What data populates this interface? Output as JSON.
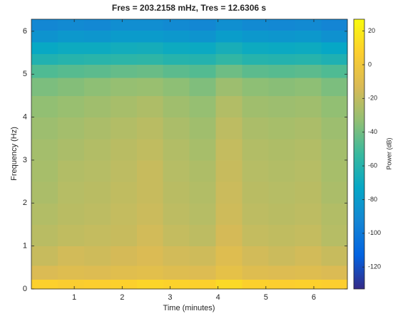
{
  "chart_data": {
    "type": "heatmap",
    "title": "Fres = 203.2158 mHz, Tres = 12.6306 s",
    "x_label": "Time (minutes)",
    "y_label": "Frequency (Hz)",
    "colorbar_label": "Power (dB)",
    "xlim": [
      0.105,
      6.7
    ],
    "ylim": [
      0,
      6.28
    ],
    "xticks": [
      1,
      2,
      3,
      4,
      5,
      6
    ],
    "yticks": [
      0,
      1,
      2,
      3,
      4,
      5,
      6
    ],
    "clim": [
      -133,
      27
    ],
    "cticks": [
      20,
      0,
      -20,
      -40,
      -60,
      -80,
      -100,
      -120
    ],
    "colormap": [
      "#352a87",
      "#0363e1",
      "#1485d4",
      "#06a7c6",
      "#38b99e",
      "#92bf73",
      "#d9ba56",
      "#fcce2e",
      "#f9fb0e"
    ],
    "x": [
      0.38,
      0.93,
      1.48,
      2.03,
      2.58,
      3.13,
      3.68,
      4.23,
      4.78,
      5.33,
      5.88,
      6.43
    ],
    "y": [
      0.1,
      0.35,
      0.75,
      1.25,
      1.75,
      2.25,
      2.75,
      3.25,
      3.75,
      4.25,
      4.75,
      5.1,
      5.35,
      5.6,
      5.9,
      6.15
    ],
    "z": [
      [
        8,
        6,
        7,
        8,
        10,
        9,
        8,
        12,
        8,
        7,
        8,
        7
      ],
      [
        -12,
        -10,
        -11,
        -9,
        -8,
        -10,
        -11,
        -6,
        -10,
        -11,
        -10,
        -12
      ],
      [
        -18,
        -15,
        -16,
        -14,
        -12,
        -15,
        -16,
        -10,
        -15,
        -17,
        -15,
        -18
      ],
      [
        -22,
        -20,
        -19,
        -18,
        -15,
        -19,
        -21,
        -14,
        -19,
        -20,
        -19,
        -23
      ],
      [
        -24,
        -22,
        -21,
        -19,
        -17,
        -21,
        -23,
        -16,
        -21,
        -22,
        -21,
        -24
      ],
      [
        -26,
        -23,
        -22,
        -20,
        -18,
        -22,
        -24,
        -17,
        -22,
        -23,
        -22,
        -26
      ],
      [
        -27,
        -24,
        -23,
        -21,
        -18,
        -23,
        -25,
        -18,
        -23,
        -24,
        -23,
        -27
      ],
      [
        -28,
        -26,
        -24,
        -22,
        -20,
        -24,
        -27,
        -19,
        -24,
        -25,
        -24,
        -28
      ],
      [
        -30,
        -28,
        -26,
        -24,
        -22,
        -26,
        -29,
        -21,
        -26,
        -27,
        -26,
        -30
      ],
      [
        -33,
        -31,
        -29,
        -27,
        -25,
        -29,
        -32,
        -24,
        -29,
        -30,
        -29,
        -33
      ],
      [
        -38,
        -36,
        -34,
        -32,
        -31,
        -34,
        -37,
        -30,
        -34,
        -35,
        -34,
        -38
      ],
      [
        -48,
        -46,
        -45,
        -43,
        -42,
        -45,
        -47,
        -41,
        -45,
        -46,
        -45,
        -48
      ],
      [
        -62,
        -60,
        -59,
        -58,
        -57,
        -60,
        -61,
        -56,
        -60,
        -61,
        -60,
        -63
      ],
      [
        -72,
        -70,
        -70,
        -68,
        -67,
        -70,
        -71,
        -66,
        -70,
        -71,
        -70,
        -73
      ],
      [
        -85,
        -82,
        -83,
        -80,
        -80,
        -82,
        -84,
        -79,
        -82,
        -83,
        -82,
        -86
      ],
      [
        -92,
        -90,
        -91,
        -88,
        -88,
        -90,
        -92,
        -87,
        -90,
        -91,
        -90,
        -93
      ]
    ]
  }
}
